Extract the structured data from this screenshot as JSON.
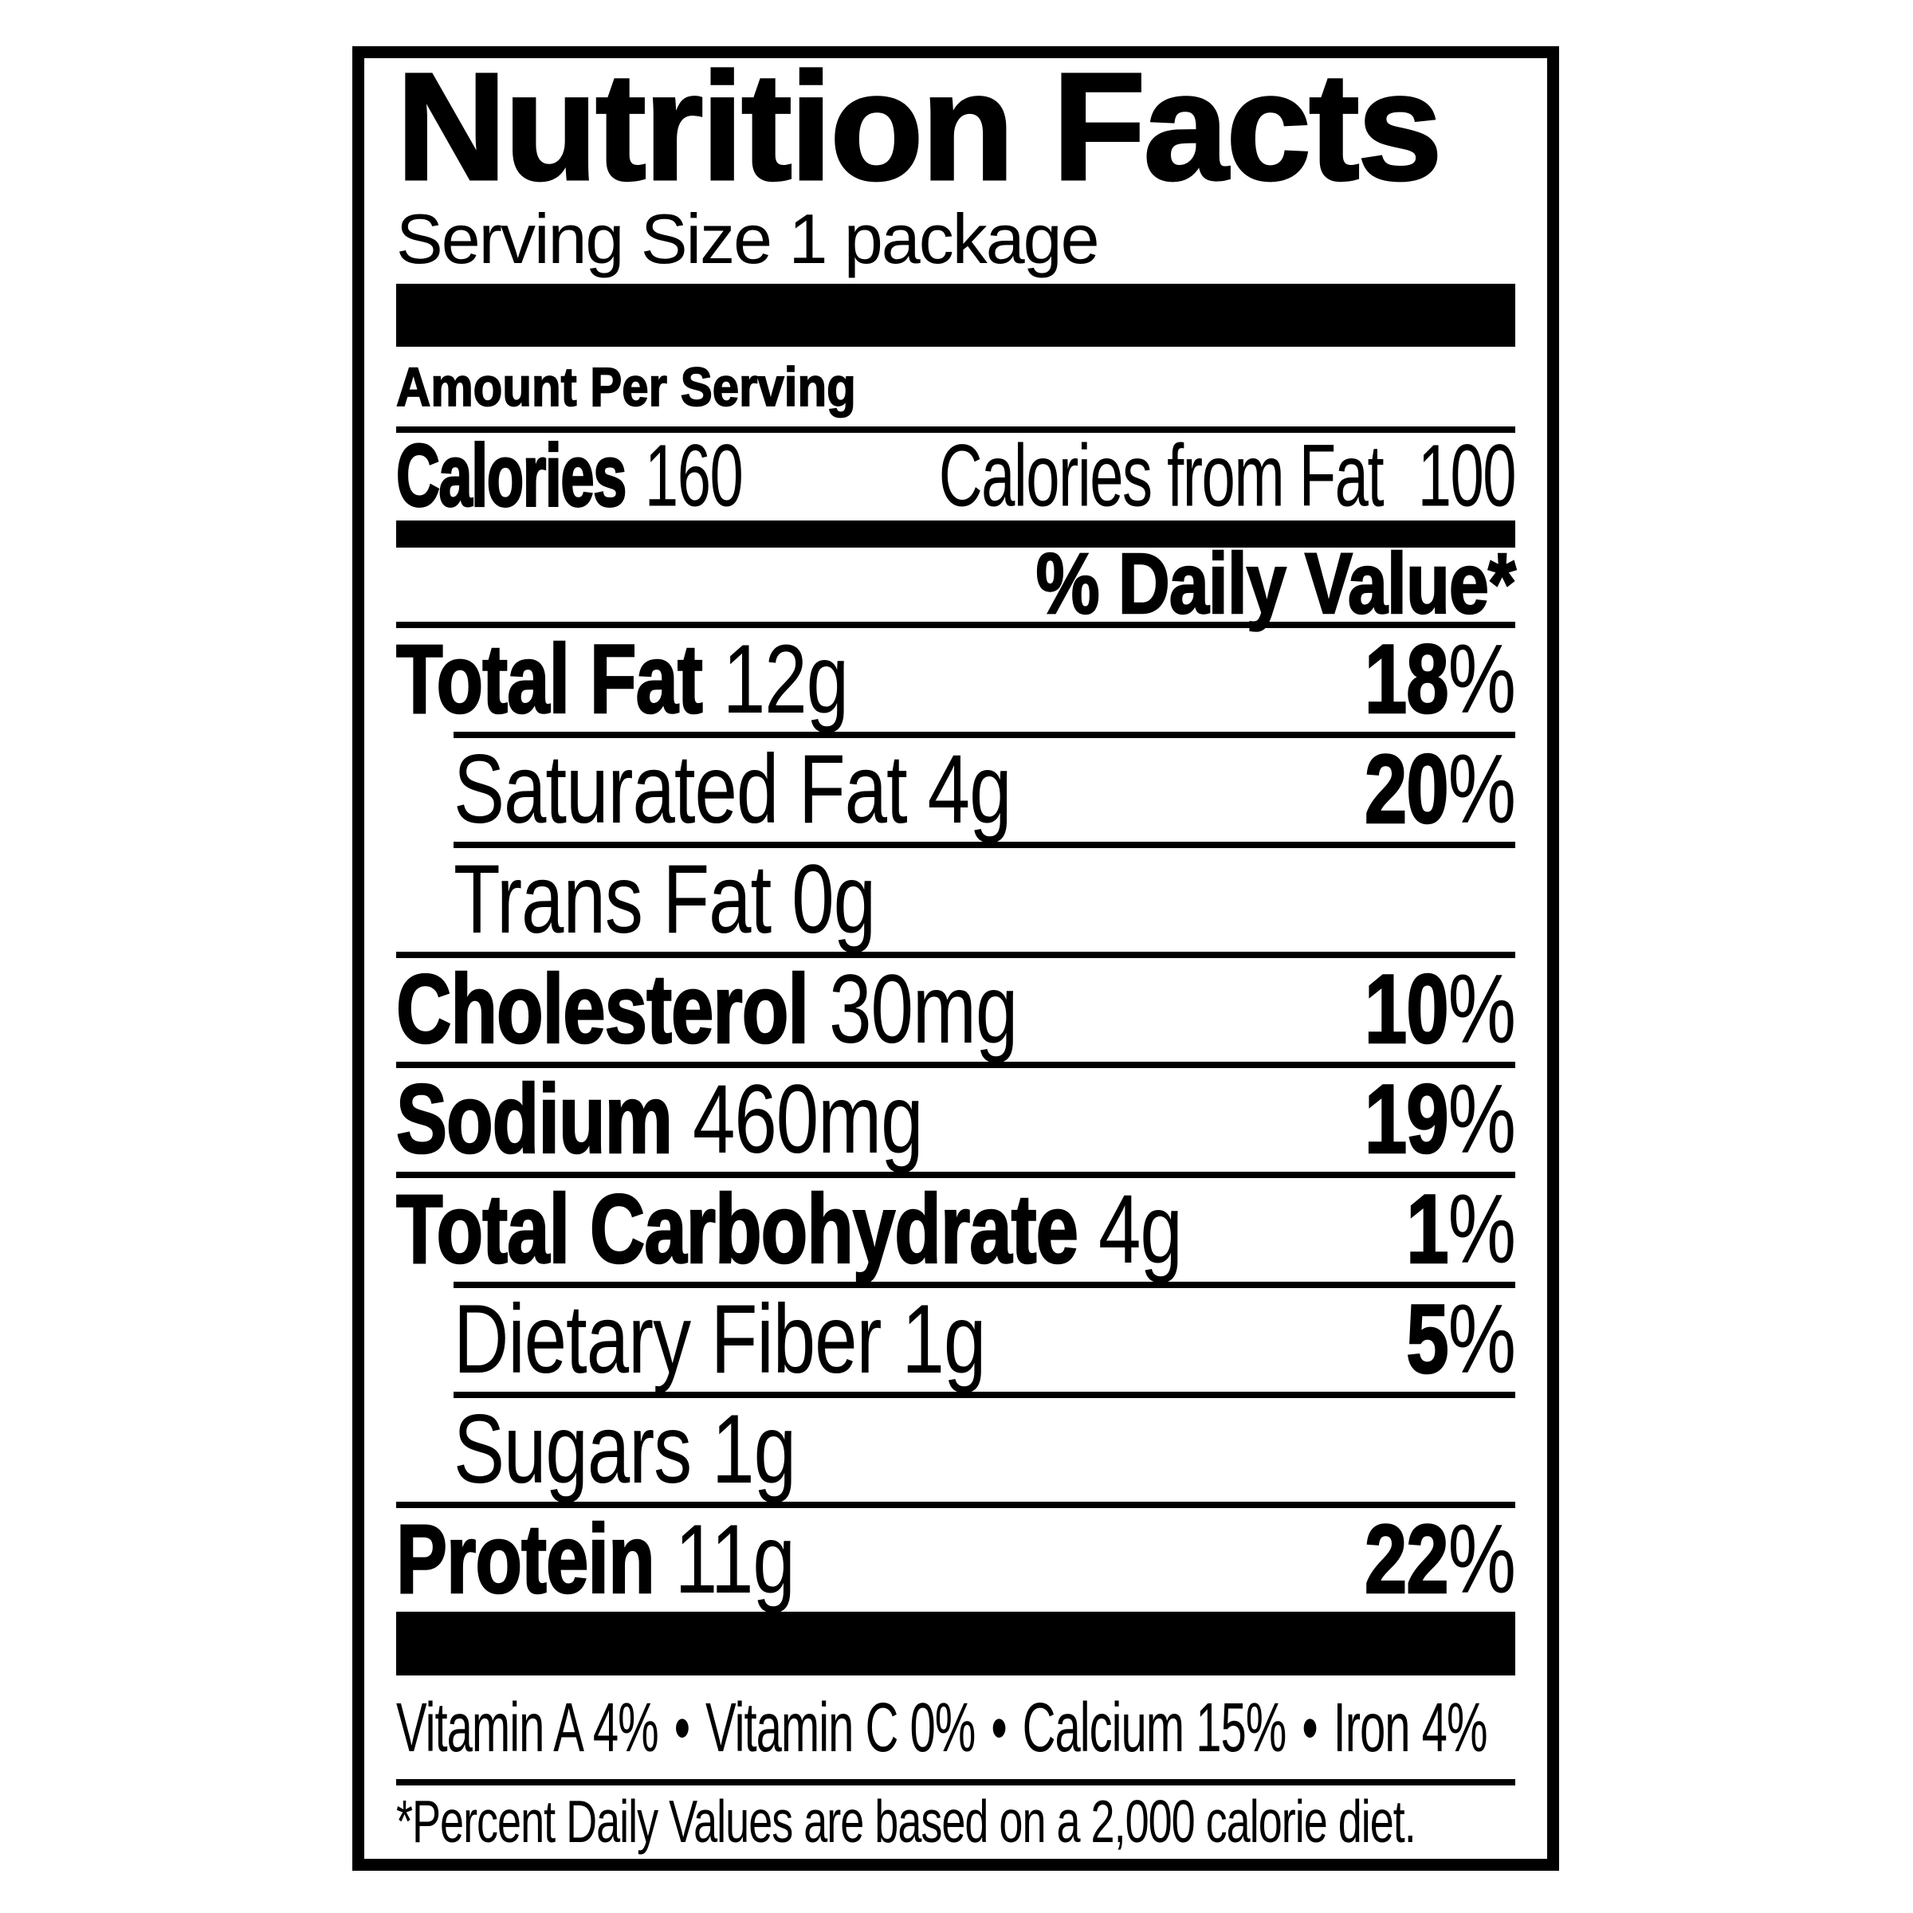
{
  "label": {
    "title": "Nutrition Facts",
    "serving_size": "Serving Size 1 package",
    "amount_per_serving": "Amount Per Serving",
    "calories": {
      "label": "Calories",
      "value": "160",
      "from_fat_label": "Calories from Fat",
      "from_fat_value": "100"
    },
    "daily_value_header": "% Daily Value*",
    "nutrients": [
      {
        "name": "Total Fat",
        "amount": "12g",
        "daily_value": "18"
      },
      {
        "name": "Saturated Fat",
        "amount": "4g",
        "daily_value": "20"
      },
      {
        "name": "Trans Fat",
        "amount": "0g",
        "daily_value": ""
      },
      {
        "name": "Cholesterol",
        "amount": "30mg",
        "daily_value": "10"
      },
      {
        "name": "Sodium",
        "amount": "460mg",
        "daily_value": "19"
      },
      {
        "name": "Total Carbohydrate",
        "amount": "4g",
        "daily_value": "1"
      },
      {
        "name": "Dietary Fiber",
        "amount": "1g",
        "daily_value": "5"
      },
      {
        "name": "Sugars",
        "amount": "1g",
        "daily_value": ""
      },
      {
        "name": "Protein",
        "amount": "11g",
        "daily_value": "22"
      }
    ],
    "vitamins": [
      {
        "text": "Vitamin A 4%"
      },
      {
        "text": "Vitamin C 0%"
      },
      {
        "text": "Calcium 15%"
      },
      {
        "text": "Iron 4%"
      }
    ],
    "bullet": "•",
    "footnote": "*Percent Daily Values are based on a 2,000 calorie diet.",
    "colors": {
      "ink": "#000000",
      "paper": "#ffffff"
    }
  }
}
